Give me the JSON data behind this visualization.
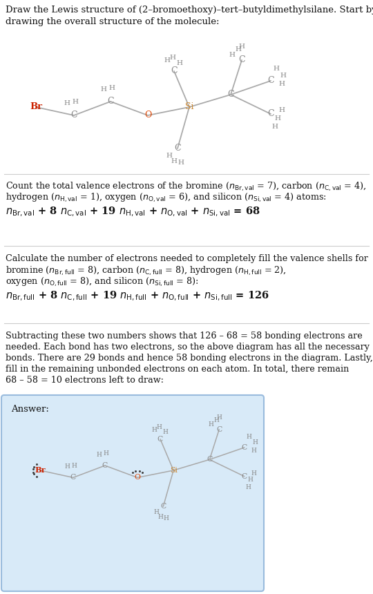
{
  "bg_color": "#ffffff",
  "answer_bg": "#d8eaf8",
  "atom_color": "#888888",
  "br_color": "#cc2200",
  "o_color": "#dd4400",
  "si_color": "#cc8833",
  "bond_color": "#aaaaaa",
  "text_color": "#111111",
  "div_color": "#cccccc"
}
